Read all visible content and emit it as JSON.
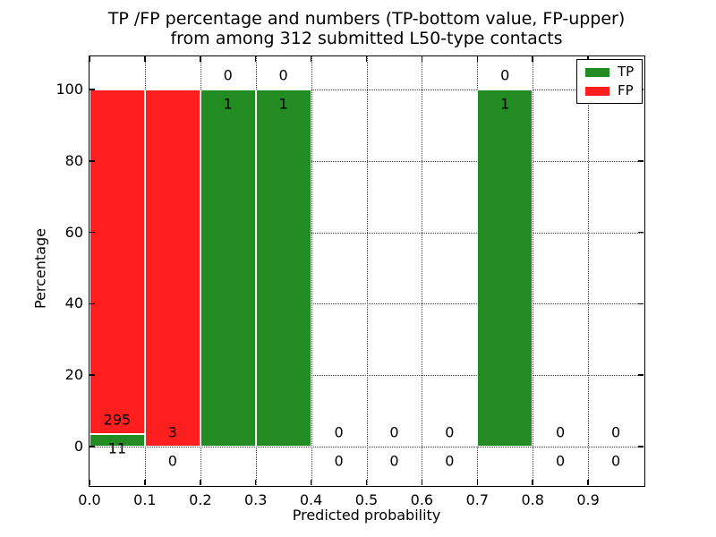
{
  "chart_data": {
    "type": "bar",
    "stacked": true,
    "title_line1": "TP /FP percentage and numbers (TP-bottom value, FP-upper)",
    "title_line2": "from among 312 submitted L50-type contacts",
    "xlabel": "Predicted probability",
    "ylabel": "Percentage",
    "xlim": [
      0.0,
      1.0
    ],
    "ylim": [
      -10.8,
      109.3
    ],
    "grid": "dotted",
    "x_ticks": [
      {
        "value": 0.0,
        "label": "0.0"
      },
      {
        "value": 0.1,
        "label": "0.1"
      },
      {
        "value": 0.2,
        "label": "0.2"
      },
      {
        "value": 0.3,
        "label": "0.3"
      },
      {
        "value": 0.4,
        "label": "0.4"
      },
      {
        "value": 0.5,
        "label": "0.5"
      },
      {
        "value": 0.6,
        "label": "0.6"
      },
      {
        "value": 0.7,
        "label": "0.7"
      },
      {
        "value": 0.8,
        "label": "0.8"
      },
      {
        "value": 0.9,
        "label": "0.9"
      }
    ],
    "y_ticks": [
      {
        "value": 0,
        "label": "0"
      },
      {
        "value": 20,
        "label": "20"
      },
      {
        "value": 40,
        "label": "40"
      },
      {
        "value": 60,
        "label": "60"
      },
      {
        "value": 80,
        "label": "80"
      },
      {
        "value": 100,
        "label": "100"
      }
    ],
    "legend": {
      "position": "upper-right",
      "entries": [
        {
          "label": "TP",
          "color": "#228b22"
        },
        {
          "label": "FP",
          "color": "#ff1f1f"
        }
      ]
    },
    "colors": {
      "tp": "#228b22",
      "fp": "#ff1f1f"
    },
    "bins": [
      {
        "x_start": 0.0,
        "x_end": 0.1,
        "tp_count": 11,
        "fp_count": 295,
        "tp_pct": 3.6,
        "fp_pct": 96.4
      },
      {
        "x_start": 0.1,
        "x_end": 0.2,
        "tp_count": 0,
        "fp_count": 3,
        "tp_pct": 0,
        "fp_pct": 100
      },
      {
        "x_start": 0.2,
        "x_end": 0.3,
        "tp_count": 1,
        "fp_count": 0,
        "tp_pct": 100,
        "fp_pct": 0
      },
      {
        "x_start": 0.3,
        "x_end": 0.4,
        "tp_count": 1,
        "fp_count": 0,
        "tp_pct": 100,
        "fp_pct": 0
      },
      {
        "x_start": 0.4,
        "x_end": 0.5,
        "tp_count": 0,
        "fp_count": 0,
        "tp_pct": 0,
        "fp_pct": 0
      },
      {
        "x_start": 0.5,
        "x_end": 0.6,
        "tp_count": 0,
        "fp_count": 0,
        "tp_pct": 0,
        "fp_pct": 0
      },
      {
        "x_start": 0.6,
        "x_end": 0.7,
        "tp_count": 0,
        "fp_count": 0,
        "tp_pct": 0,
        "fp_pct": 0
      },
      {
        "x_start": 0.7,
        "x_end": 0.8,
        "tp_count": 1,
        "fp_count": 0,
        "tp_pct": 100,
        "fp_pct": 0
      },
      {
        "x_start": 0.8,
        "x_end": 0.9,
        "tp_count": 0,
        "fp_count": 0,
        "tp_pct": 0,
        "fp_pct": 0
      },
      {
        "x_start": 0.9,
        "x_end": 1.0,
        "tp_count": 0,
        "fp_count": 0,
        "tp_pct": 0,
        "fp_pct": 0
      }
    ]
  }
}
